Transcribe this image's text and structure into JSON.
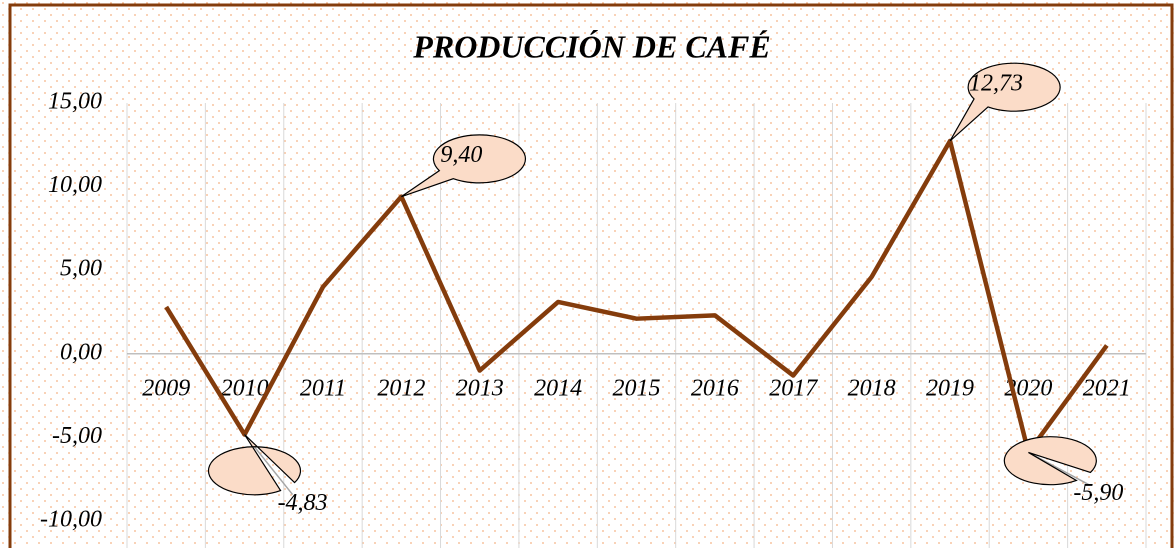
{
  "chart_data": {
    "type": "line",
    "title": "PRODUCCIÓN DE CAFÉ",
    "categories": [
      "2009",
      "2010",
      "2011",
      "2012",
      "2013",
      "2014",
      "2015",
      "2016",
      "2017",
      "2018",
      "2019",
      "2020",
      "2021"
    ],
    "series": [
      {
        "name": "Producción de café",
        "color": "#843c0c",
        "values": [
          2.8,
          -4.83,
          4.0,
          9.4,
          -1.0,
          3.1,
          2.1,
          2.3,
          -1.3,
          4.6,
          12.73,
          -5.9,
          0.5
        ],
        "value_labels": [
          null,
          "-4,83",
          null,
          "9,40",
          null,
          null,
          null,
          null,
          null,
          null,
          "12,73",
          "-5,90",
          null
        ]
      }
    ],
    "ylim": [
      -10,
      15
    ],
    "yticks": [
      {
        "value": -10,
        "label": "-10,00"
      },
      {
        "value": -5,
        "label": "-5,00"
      },
      {
        "value": 0,
        "label": "0,00"
      },
      {
        "value": 5,
        "label": "5,00"
      },
      {
        "value": 10,
        "label": "10,00"
      },
      {
        "value": 15,
        "label": "15,00"
      }
    ],
    "grid": true
  }
}
